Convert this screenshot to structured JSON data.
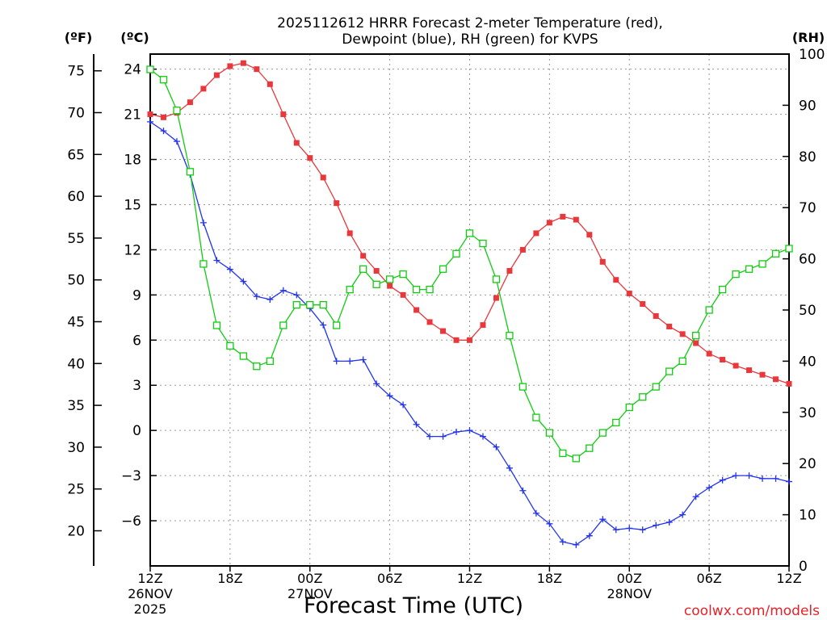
{
  "chart_data": {
    "type": "line",
    "title_line1": "2025112612 HRRR Forecast 2-meter Temperature (red),",
    "title_line2": "Dewpoint (blue), RH (green) for KVPS",
    "left_unit_f": "(ºF)",
    "left_unit_c": "(ºC)",
    "right_unit": "(RH)",
    "xlabel": "Forecast Time (UTC)",
    "credit": "coolwx.com/models",
    "xlim": [
      0,
      48
    ],
    "ylim_c": [
      -9,
      25
    ],
    "ylim_rh": [
      0,
      100
    ],
    "celsius_ticks": [
      {
        "value": 24,
        "label": "24"
      },
      {
        "value": 21,
        "label": "21"
      },
      {
        "value": 18,
        "label": "18"
      },
      {
        "value": 15,
        "label": "15"
      },
      {
        "value": 12,
        "label": "12"
      },
      {
        "value": 9,
        "label": "9"
      },
      {
        "value": 6,
        "label": "6"
      },
      {
        "value": 3,
        "label": "3"
      },
      {
        "value": 0,
        "label": "0"
      },
      {
        "value": -3,
        "label": "−3"
      },
      {
        "value": -6,
        "label": "−6"
      }
    ],
    "fahrenheit_ticks": [
      {
        "value": 75,
        "label": "75"
      },
      {
        "value": 70,
        "label": "70"
      },
      {
        "value": 65,
        "label": "65"
      },
      {
        "value": 60,
        "label": "60"
      },
      {
        "value": 55,
        "label": "55"
      },
      {
        "value": 50,
        "label": "50"
      },
      {
        "value": 45,
        "label": "45"
      },
      {
        "value": 40,
        "label": "40"
      },
      {
        "value": 35,
        "label": "35"
      },
      {
        "value": 30,
        "label": "30"
      },
      {
        "value": 25,
        "label": "25"
      },
      {
        "value": 20,
        "label": "20"
      }
    ],
    "rh_ticks": [
      {
        "value": 100,
        "label": "100"
      },
      {
        "value": 90,
        "label": "90"
      },
      {
        "value": 80,
        "label": "80"
      },
      {
        "value": 70,
        "label": "70"
      },
      {
        "value": 60,
        "label": "60"
      },
      {
        "value": 50,
        "label": "50"
      },
      {
        "value": 40,
        "label": "40"
      },
      {
        "value": 30,
        "label": "30"
      },
      {
        "value": 20,
        "label": "20"
      },
      {
        "value": 10,
        "label": "10"
      },
      {
        "value": 0,
        "label": "0"
      }
    ],
    "x_ticks": [
      {
        "hour": 0,
        "label": "12Z",
        "sub1": "26NOV",
        "sub2": "2025"
      },
      {
        "hour": 6,
        "label": "18Z",
        "sub1": "",
        "sub2": ""
      },
      {
        "hour": 12,
        "label": "00Z",
        "sub1": "27NOV",
        "sub2": ""
      },
      {
        "hour": 18,
        "label": "06Z",
        "sub1": "",
        "sub2": ""
      },
      {
        "hour": 24,
        "label": "12Z",
        "sub1": "",
        "sub2": ""
      },
      {
        "hour": 30,
        "label": "18Z",
        "sub1": "",
        "sub2": ""
      },
      {
        "hour": 36,
        "label": "00Z",
        "sub1": "28NOV",
        "sub2": ""
      },
      {
        "hour": 42,
        "label": "06Z",
        "sub1": "",
        "sub2": ""
      },
      {
        "hour": 48,
        "label": "12Z",
        "sub1": "",
        "sub2": ""
      }
    ],
    "series": [
      {
        "name": "2-meter Temperature",
        "units": "C",
        "color": "#e8383c",
        "marker": "filled-square",
        "x": [
          0,
          1,
          2,
          3,
          4,
          5,
          6,
          7,
          8,
          9,
          10,
          11,
          12,
          13,
          14,
          15,
          16,
          17,
          18,
          19,
          20,
          21,
          22,
          23,
          24,
          25,
          26,
          27,
          28,
          29,
          30,
          31,
          32,
          33,
          34,
          35,
          36,
          37,
          38,
          39,
          40,
          41,
          42,
          43,
          44,
          45,
          46,
          47,
          48
        ],
        "values": [
          21.0,
          20.8,
          21.1,
          21.8,
          22.7,
          23.6,
          24.2,
          24.4,
          24.0,
          23.0,
          21.0,
          19.1,
          18.1,
          16.8,
          15.1,
          13.1,
          11.6,
          10.6,
          9.6,
          9.0,
          8.0,
          7.2,
          6.6,
          6.0,
          6.0,
          7.0,
          8.8,
          10.6,
          12.0,
          13.1,
          13.8,
          14.2,
          14.0,
          13.0,
          11.2,
          10.0,
          9.1,
          8.4,
          7.6,
          6.9,
          6.4,
          5.8,
          5.1,
          4.7,
          4.3,
          4.0,
          3.7,
          3.4,
          3.1
        ]
      },
      {
        "name": "Dewpoint",
        "units": "C",
        "color": "#2233ee",
        "marker": "plus",
        "x": [
          0,
          1,
          2,
          3,
          4,
          5,
          6,
          7,
          8,
          9,
          10,
          11,
          12,
          13,
          14,
          15,
          16,
          17,
          18,
          19,
          20,
          21,
          22,
          23,
          24,
          25,
          26,
          27,
          28,
          29,
          30,
          31,
          32,
          33,
          34,
          35,
          36,
          37,
          38,
          39,
          40,
          41,
          42,
          43,
          44,
          45,
          46,
          47,
          48
        ],
        "values": [
          20.5,
          19.9,
          19.2,
          17.0,
          13.8,
          11.3,
          10.7,
          9.9,
          8.9,
          8.7,
          9.3,
          9.0,
          8.1,
          7.0,
          4.6,
          4.6,
          4.7,
          3.1,
          2.3,
          1.7,
          0.4,
          -0.4,
          -0.4,
          -0.1,
          0.0,
          -0.4,
          -1.1,
          -2.5,
          -4.0,
          -5.5,
          -6.2,
          -7.4,
          -7.6,
          -7.0,
          -5.9,
          -6.6,
          -6.5,
          -6.6,
          -6.3,
          -6.1,
          -5.6,
          -4.4,
          -3.8,
          -3.3,
          -3.0,
          -3.0,
          -3.2,
          -3.2,
          -3.4
        ]
      },
      {
        "name": "RH",
        "units": "%",
        "color": "#11cc11",
        "marker": "open-square",
        "x": [
          0,
          1,
          2,
          3,
          4,
          5,
          6,
          7,
          8,
          9,
          10,
          11,
          12,
          13,
          14,
          15,
          16,
          17,
          18,
          19,
          20,
          21,
          22,
          23,
          24,
          25,
          26,
          27,
          28,
          29,
          30,
          31,
          32,
          33,
          34,
          35,
          36,
          37,
          38,
          39,
          40,
          41,
          42,
          43,
          44,
          45,
          46,
          47,
          48
        ],
        "values": [
          97,
          95,
          89,
          77,
          59,
          47,
          43,
          41,
          39,
          40,
          47,
          51,
          51,
          51,
          47,
          54,
          58,
          55,
          56,
          57,
          54,
          54,
          58,
          61,
          65,
          63,
          56,
          45,
          35,
          29,
          26,
          22,
          21,
          23,
          26,
          28,
          31,
          33,
          35,
          38,
          40,
          45,
          50,
          54,
          57,
          58,
          59,
          61,
          62
        ]
      }
    ]
  }
}
